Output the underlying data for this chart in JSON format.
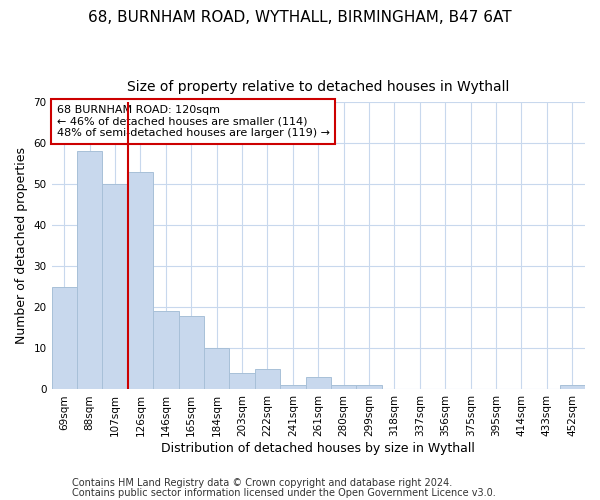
{
  "title1": "68, BURNHAM ROAD, WYTHALL, BIRMINGHAM, B47 6AT",
  "title2": "Size of property relative to detached houses in Wythall",
  "xlabel": "Distribution of detached houses by size in Wythall",
  "ylabel": "Number of detached properties",
  "categories": [
    "69sqm",
    "88sqm",
    "107sqm",
    "126sqm",
    "146sqm",
    "165sqm",
    "184sqm",
    "203sqm",
    "222sqm",
    "241sqm",
    "261sqm",
    "280sqm",
    "299sqm",
    "318sqm",
    "337sqm",
    "356sqm",
    "375sqm",
    "395sqm",
    "414sqm",
    "433sqm",
    "452sqm"
  ],
  "values": [
    25,
    58,
    50,
    53,
    19,
    18,
    10,
    4,
    5,
    1,
    3,
    1,
    1,
    0,
    0,
    0,
    0,
    0,
    0,
    0,
    1
  ],
  "bar_color": "#c8d8ed",
  "bar_edge_color": "#a8c0d8",
  "vline_x": 2.5,
  "vline_color": "#cc0000",
  "annotation_line1": "68 BURNHAM ROAD: 120sqm",
  "annotation_line2": "← 46% of detached houses are smaller (114)",
  "annotation_line3": "48% of semi-detached houses are larger (119) →",
  "annotation_box_color": "white",
  "annotation_box_edge": "#cc0000",
  "ylim": [
    0,
    70
  ],
  "yticks": [
    0,
    10,
    20,
    30,
    40,
    50,
    60,
    70
  ],
  "footer1": "Contains HM Land Registry data © Crown copyright and database right 2024.",
  "footer2": "Contains public sector information licensed under the Open Government Licence v3.0.",
  "bg_color": "#ffffff",
  "plot_bg_color": "#ffffff",
  "grid_color": "#c8d8ed",
  "title_fontsize": 11,
  "subtitle_fontsize": 10,
  "axis_label_fontsize": 9,
  "tick_fontsize": 7.5,
  "footer_fontsize": 7
}
